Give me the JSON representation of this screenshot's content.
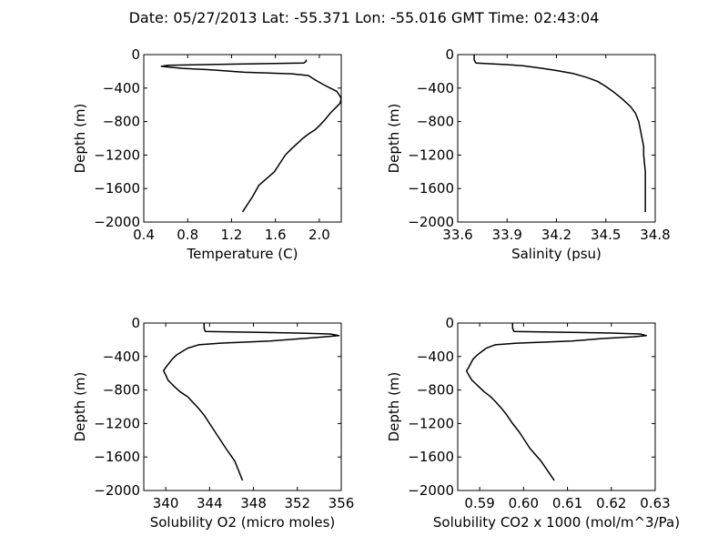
{
  "figure": {
    "title": "Date: 05/27/2013  Lat:  -55.371 Lon:  -55.016  GMT Time: 02:43:04"
  },
  "chart_data": [
    {
      "type": "line",
      "id": "temperature",
      "xlabel": "Temperature (C)",
      "ylabel": "Depth (m)",
      "xlim": [
        0.4,
        2.2
      ],
      "ylim": [
        -2000,
        0
      ],
      "xticks": [
        0.4,
        0.8,
        1.2,
        1.6,
        2.0
      ],
      "xtick_labels": [
        "0.4",
        "0.8",
        "1.2",
        "1.6",
        "2.0"
      ],
      "yticks": [
        0,
        -400,
        -800,
        -1200,
        -1600,
        -2000
      ],
      "ytick_labels": [
        "0",
        "−400",
        "−800",
        "−1200",
        "−1600",
        "−2000"
      ],
      "grid": false,
      "series": [
        {
          "x": [
            1.88,
            1.88,
            1.86,
            1.4,
            0.95,
            0.62,
            0.56,
            0.75,
            0.98,
            1.32,
            1.75,
            1.9,
            1.96,
            2.0,
            2.04,
            2.1,
            2.16,
            2.2,
            2.19,
            2.16,
            2.13,
            2.1,
            2.05,
            2.0,
            1.96,
            1.9,
            1.85,
            1.8,
            1.75,
            1.69,
            1.64,
            1.59,
            1.52,
            1.45,
            1.39,
            1.3
          ],
          "y": [
            -60,
            -80,
            -100,
            -110,
            -120,
            -128,
            -140,
            -165,
            -180,
            -210,
            -230,
            -250,
            -300,
            -330,
            -360,
            -400,
            -440,
            -520,
            -580,
            -620,
            -660,
            -700,
            -780,
            -850,
            -900,
            -950,
            -1000,
            -1060,
            -1120,
            -1200,
            -1300,
            -1400,
            -1480,
            -1560,
            -1700,
            -1880
          ],
          "color": "#000000"
        }
      ]
    },
    {
      "type": "line",
      "id": "salinity",
      "xlabel": "Salinity (psu)",
      "ylabel": "Depth (m)",
      "xlim": [
        33.6,
        34.8
      ],
      "ylim": [
        -2000,
        0
      ],
      "xticks": [
        33.6,
        33.9,
        34.2,
        34.5,
        34.8
      ],
      "xtick_labels": [
        "33.6",
        "33.9",
        "34.2",
        "34.5",
        "34.8"
      ],
      "yticks": [
        0,
        -400,
        -800,
        -1200,
        -1600,
        -2000
      ],
      "ytick_labels": [
        "0",
        "−400",
        "−800",
        "−1200",
        "−1600",
        "−2000"
      ],
      "grid": false,
      "series": [
        {
          "x": [
            33.7,
            33.7,
            33.71,
            33.8,
            33.9,
            34.0,
            34.1,
            34.2,
            34.3,
            34.38,
            34.45,
            34.5,
            34.55,
            34.6,
            34.65,
            34.68,
            34.7,
            34.71,
            34.72,
            34.73,
            34.73,
            34.74,
            34.74,
            34.74
          ],
          "y": [
            0,
            -60,
            -100,
            -110,
            -120,
            -135,
            -160,
            -190,
            -225,
            -270,
            -320,
            -380,
            -450,
            -530,
            -620,
            -700,
            -800,
            -900,
            -1000,
            -1100,
            -1200,
            -1400,
            -1600,
            -1880
          ],
          "color": "#000000"
        }
      ]
    },
    {
      "type": "line",
      "id": "solubility-o2",
      "xlabel": "Solubility O2 (micro moles)",
      "ylabel": "Depth (m)",
      "xlim": [
        338,
        356
      ],
      "ylim": [
        -2000,
        0
      ],
      "xticks": [
        340,
        344,
        348,
        352,
        356
      ],
      "xtick_labels": [
        "340",
        "344",
        "348",
        "352",
        "356"
      ],
      "yticks": [
        0,
        -400,
        -800,
        -1200,
        -1600,
        -2000
      ],
      "ytick_labels": [
        "0",
        "−400",
        "−800",
        "−1200",
        "−1600",
        "−2000"
      ],
      "grid": false,
      "series": [
        {
          "x": [
            343.5,
            343.5,
            343.6,
            348.0,
            352.0,
            355.0,
            355.8,
            354.5,
            352.5,
            349.5,
            345.0,
            343.0,
            342.0,
            341.5,
            341.0,
            340.6,
            340.3,
            340.0,
            339.8,
            340.0,
            340.2,
            340.5,
            340.8,
            341.3,
            342.0,
            342.5,
            343.0,
            343.5,
            344.0,
            344.5,
            345.5,
            346.3,
            347.0
          ],
          "y": [
            0,
            -60,
            -100,
            -110,
            -120,
            -130,
            -150,
            -165,
            -185,
            -215,
            -240,
            -260,
            -300,
            -340,
            -380,
            -430,
            -480,
            -530,
            -570,
            -620,
            -680,
            -720,
            -760,
            -820,
            -880,
            -950,
            -1020,
            -1100,
            -1200,
            -1300,
            -1500,
            -1650,
            -1880
          ],
          "color": "#000000"
        }
      ]
    },
    {
      "type": "line",
      "id": "solubility-co2",
      "xlabel": "Solubility CO2 x 1000 (mol/m^3/Pa)",
      "ylabel": "Depth (m)",
      "xlim": [
        0.585,
        0.63
      ],
      "ylim": [
        -2000,
        0
      ],
      "xticks": [
        0.59,
        0.6,
        0.61,
        0.62,
        0.63
      ],
      "xtick_labels": [
        "0.59",
        "0.60",
        "0.61",
        "0.62",
        "0.63"
      ],
      "yticks": [
        0,
        -400,
        -800,
        -1200,
        -1600,
        -2000
      ],
      "ytick_labels": [
        "0",
        "−400",
        "−800",
        "−1200",
        "−1600",
        "−2000"
      ],
      "grid": false,
      "series": [
        {
          "x": [
            0.5975,
            0.5975,
            0.5978,
            0.609,
            0.62,
            0.6265,
            0.628,
            0.625,
            0.618,
            0.611,
            0.5985,
            0.5935,
            0.5915,
            0.5905,
            0.5895,
            0.5885,
            0.588,
            0.5875,
            0.587,
            0.5875,
            0.5882,
            0.589,
            0.5898,
            0.591,
            0.5925,
            0.5938,
            0.595,
            0.5962,
            0.5975,
            0.599,
            0.6015,
            0.604,
            0.607
          ],
          "y": [
            0,
            -60,
            -100,
            -110,
            -120,
            -130,
            -150,
            -165,
            -185,
            -215,
            -240,
            -260,
            -300,
            -340,
            -380,
            -430,
            -480,
            -530,
            -570,
            -620,
            -680,
            -720,
            -760,
            -820,
            -880,
            -950,
            -1020,
            -1100,
            -1200,
            -1300,
            -1500,
            -1650,
            -1880
          ],
          "color": "#000000"
        }
      ]
    }
  ]
}
